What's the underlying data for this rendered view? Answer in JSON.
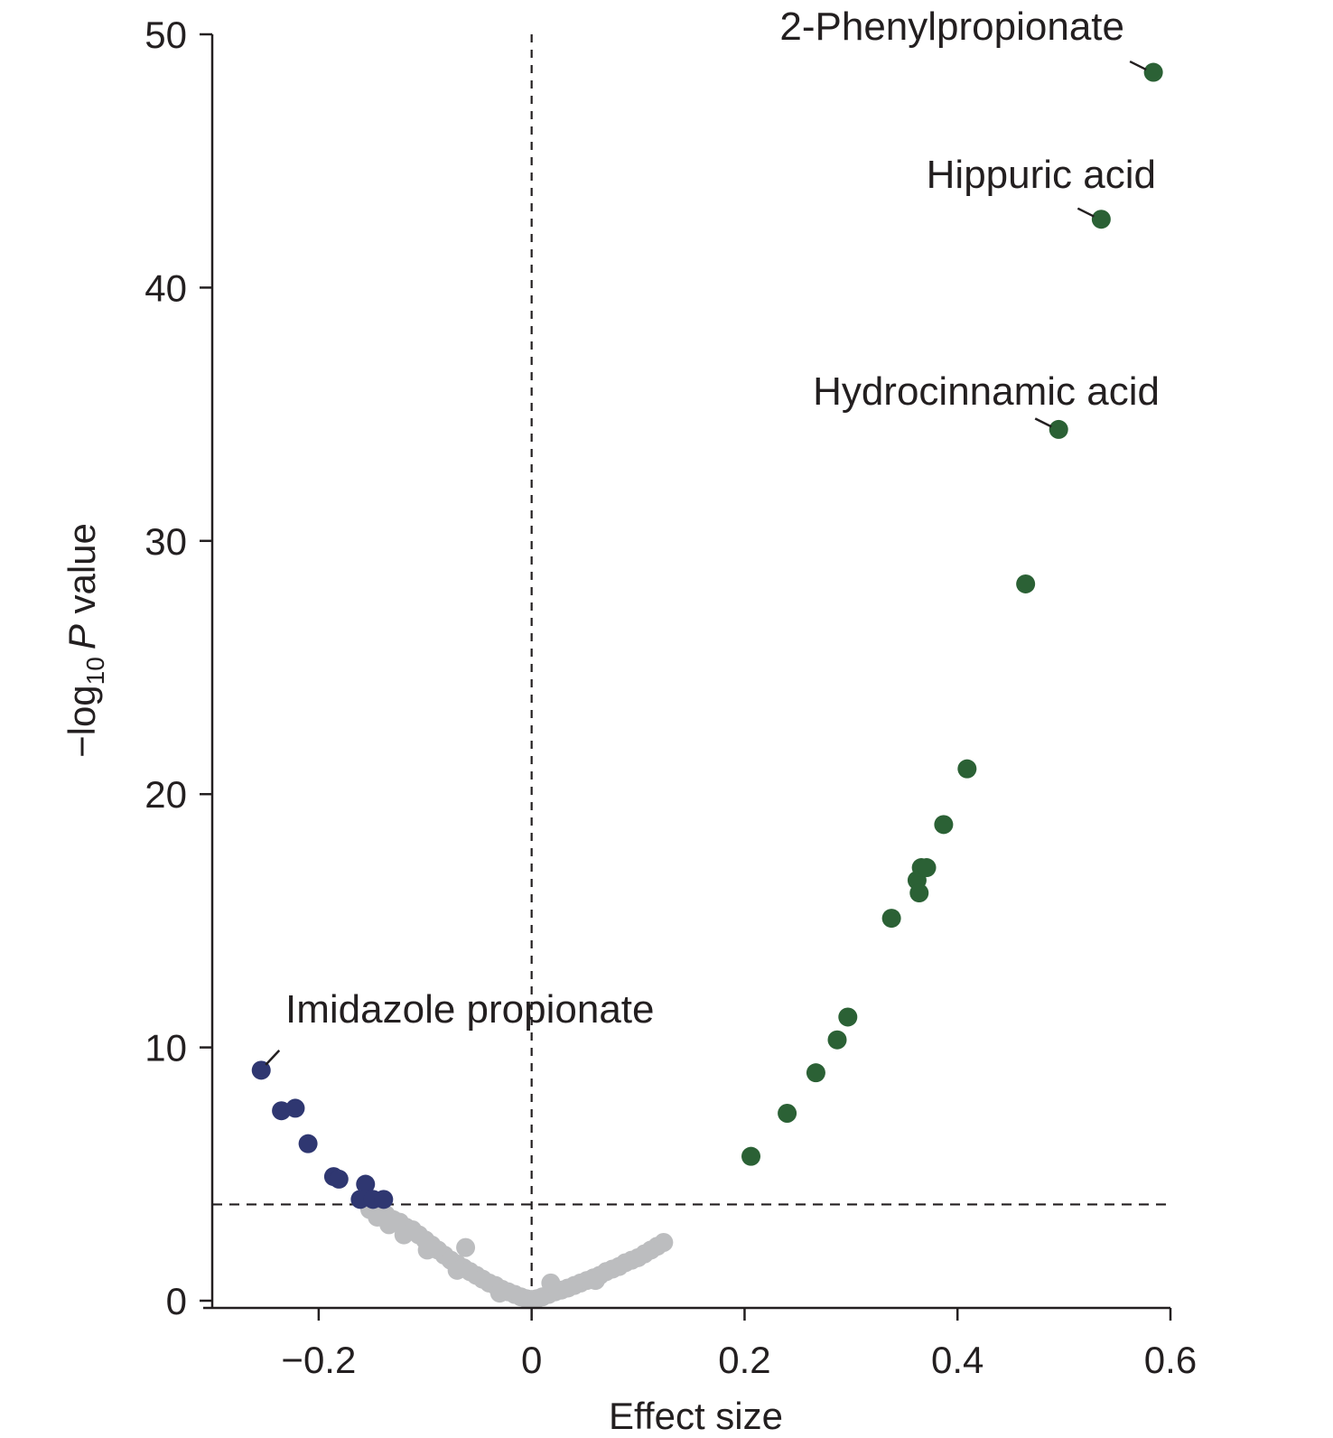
{
  "chart_data": {
    "type": "scatter",
    "title": "",
    "xlabel": "Effect size",
    "ylabel": {
      "prefix": "−log",
      "subscript": "10",
      "italic": "P",
      "suffix": " value"
    },
    "xlim": [
      -0.3,
      0.6
    ],
    "ylim": [
      0,
      50
    ],
    "xticks": [
      -0.2,
      0,
      0.2,
      0.4,
      0.6
    ],
    "xtick_labels": [
      "−0.2",
      "0",
      "0.2",
      "0.4",
      "0.6"
    ],
    "yticks": [
      0,
      10,
      20,
      30,
      40,
      50
    ],
    "ytick_labels": [
      "0",
      "10",
      "20",
      "30",
      "40",
      "50"
    ],
    "grid": false,
    "threshold_x": 0,
    "threshold_y": 3.8,
    "colors": {
      "increased": "#2b6135",
      "decreased": "#2f3771",
      "not_significant": "#bcbdbf",
      "axis": "#231f20"
    },
    "series": [
      {
        "key": "decreased",
        "points": [
          [
            -0.254,
            9.1
          ],
          [
            -0.235,
            7.5
          ],
          [
            -0.222,
            7.6
          ],
          [
            -0.21,
            6.2
          ],
          [
            -0.186,
            4.9
          ],
          [
            -0.181,
            4.8
          ],
          [
            -0.156,
            4.6
          ],
          [
            -0.161,
            4.0
          ],
          [
            -0.149,
            4.0
          ],
          [
            -0.139,
            4.0
          ]
        ]
      },
      {
        "key": "increased",
        "points": [
          [
            0.206,
            5.7
          ],
          [
            0.24,
            7.4
          ],
          [
            0.267,
            9.0
          ],
          [
            0.287,
            10.3
          ],
          [
            0.297,
            11.2
          ],
          [
            0.338,
            15.1
          ],
          [
            0.362,
            16.6
          ],
          [
            0.364,
            16.1
          ],
          [
            0.366,
            17.1
          ],
          [
            0.371,
            17.1
          ],
          [
            0.387,
            18.8
          ],
          [
            0.409,
            21.0
          ],
          [
            0.464,
            28.3
          ],
          [
            0.495,
            34.4
          ],
          [
            0.535,
            42.7
          ],
          [
            0.584,
            48.5
          ]
        ]
      },
      {
        "key": "not_significant",
        "points": [
          [
            -0.152,
            3.6
          ],
          [
            -0.145,
            3.3
          ],
          [
            -0.137,
            3.4
          ],
          [
            -0.13,
            3.2
          ],
          [
            -0.124,
            3.1
          ],
          [
            -0.118,
            2.9
          ],
          [
            -0.112,
            2.8
          ],
          [
            -0.106,
            2.6
          ],
          [
            -0.1,
            2.4
          ],
          [
            -0.094,
            2.2
          ],
          [
            -0.088,
            2.0
          ],
          [
            -0.082,
            1.8
          ],
          [
            -0.076,
            1.6
          ],
          [
            -0.07,
            1.45
          ],
          [
            -0.064,
            1.3
          ],
          [
            -0.058,
            1.15
          ],
          [
            -0.052,
            1.0
          ],
          [
            -0.046,
            0.85
          ],
          [
            -0.04,
            0.7
          ],
          [
            -0.034,
            0.6
          ],
          [
            -0.028,
            0.45
          ],
          [
            -0.022,
            0.35
          ],
          [
            -0.016,
            0.25
          ],
          [
            -0.01,
            0.15
          ],
          [
            -0.005,
            0.08
          ],
          [
            0.0,
            0.05
          ],
          [
            0.005,
            0.08
          ],
          [
            0.01,
            0.15
          ],
          [
            0.016,
            0.25
          ],
          [
            0.022,
            0.35
          ],
          [
            0.028,
            0.42
          ],
          [
            0.034,
            0.5
          ],
          [
            0.04,
            0.6
          ],
          [
            0.046,
            0.7
          ],
          [
            0.052,
            0.8
          ],
          [
            0.058,
            0.9
          ],
          [
            0.064,
            1.0
          ],
          [
            0.07,
            1.15
          ],
          [
            0.076,
            1.25
          ],
          [
            0.082,
            1.35
          ],
          [
            0.088,
            1.5
          ],
          [
            0.094,
            1.6
          ],
          [
            0.1,
            1.7
          ],
          [
            0.106,
            1.85
          ],
          [
            0.112,
            2.0
          ],
          [
            0.118,
            2.15
          ],
          [
            0.124,
            2.3
          ],
          [
            -0.062,
            2.1
          ],
          [
            -0.134,
            3.0
          ],
          [
            0.018,
            0.7
          ],
          [
            -0.12,
            2.6
          ],
          [
            -0.098,
            2.0
          ],
          [
            -0.07,
            1.2
          ],
          [
            0.06,
            0.8
          ],
          [
            -0.03,
            0.3
          ]
        ]
      }
    ],
    "annotations": [
      {
        "label": "2-Phenylpropionate",
        "x": 0.584,
        "y": 48.5
      },
      {
        "label": "Hippuric acid",
        "x": 0.535,
        "y": 42.7
      },
      {
        "label": "Hydrocinnamic acid",
        "x": 0.495,
        "y": 34.4
      },
      {
        "label": "Imidazole propionate",
        "x": -0.254,
        "y": 9.1
      }
    ]
  }
}
